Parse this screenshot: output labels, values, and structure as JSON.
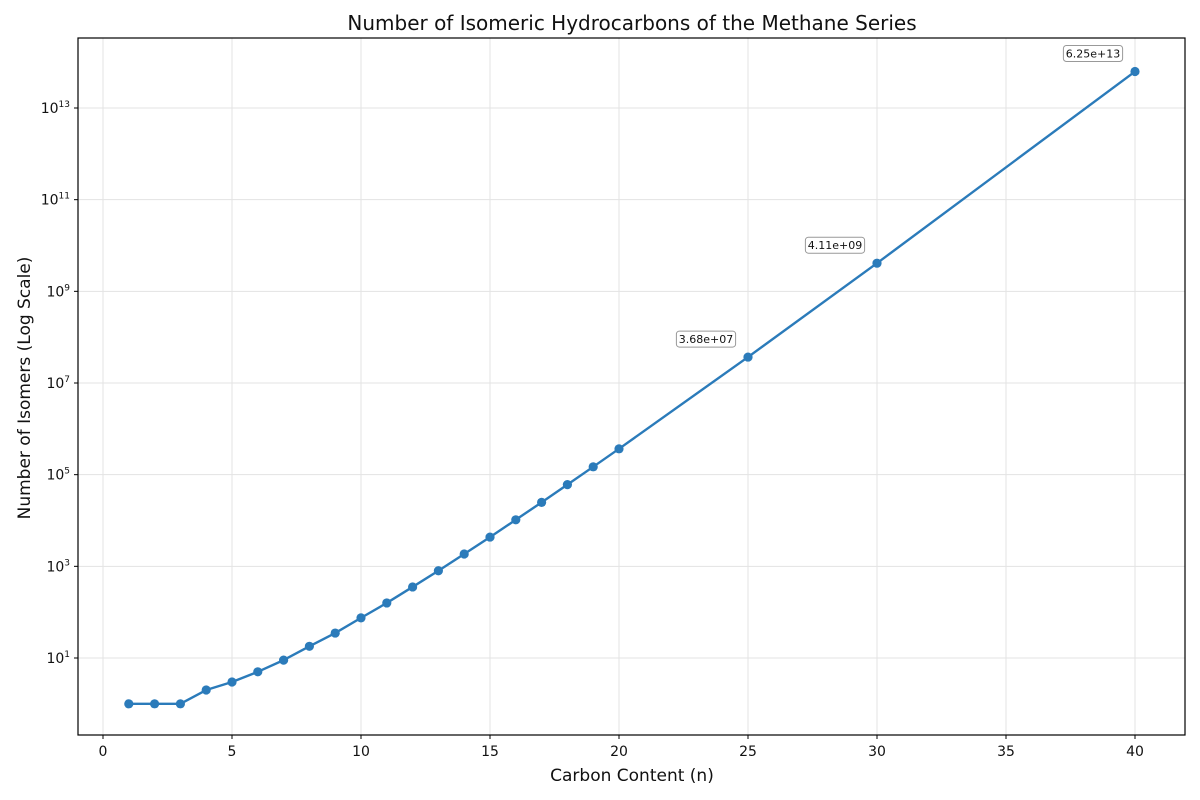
{
  "chart_data": {
    "type": "line",
    "title": "Number of Isomeric Hydrocarbons of the Methane Series",
    "xlabel": "Carbon Content (n)",
    "ylabel": "Number of Isomers (Log Scale)",
    "yscale": "log",
    "xlim": [
      -1,
      42
    ],
    "ylim_log10": [
      -0.7,
      14.5
    ],
    "grid": true,
    "legend": null,
    "x_ticks": [
      0,
      5,
      10,
      15,
      20,
      25,
      30,
      35,
      40
    ],
    "y_ticks": [
      {
        "base": "10",
        "exp": "1",
        "log": 1
      },
      {
        "base": "10",
        "exp": "3",
        "log": 3
      },
      {
        "base": "10",
        "exp": "5",
        "log": 5
      },
      {
        "base": "10",
        "exp": "7",
        "log": 7
      },
      {
        "base": "10",
        "exp": "9",
        "log": 9
      },
      {
        "base": "10",
        "exp": "11",
        "log": 11
      },
      {
        "base": "10",
        "exp": "13",
        "log": 13
      }
    ],
    "series": [
      {
        "name": "Isomers",
        "color": "#2b7bba",
        "marker": "circle",
        "x": [
          1,
          2,
          3,
          4,
          5,
          6,
          7,
          8,
          9,
          10,
          11,
          12,
          13,
          14,
          15,
          16,
          17,
          18,
          19,
          20,
          25,
          30,
          40
        ],
        "values": [
          1,
          1,
          1,
          2,
          3,
          5,
          9,
          18,
          35,
          75,
          159,
          355,
          802,
          1858,
          4347,
          10359,
          24894,
          60523,
          148284,
          366319,
          36797588,
          4111846763,
          62481801147341
        ]
      }
    ],
    "annotations": [
      {
        "x": 25,
        "value": 36797588,
        "text": "3.68e+07"
      },
      {
        "x": 30,
        "value": 4111846763,
        "text": "4.11e+09"
      },
      {
        "x": 40,
        "value": 62481801147341,
        "text": "6.25e+13"
      }
    ]
  }
}
